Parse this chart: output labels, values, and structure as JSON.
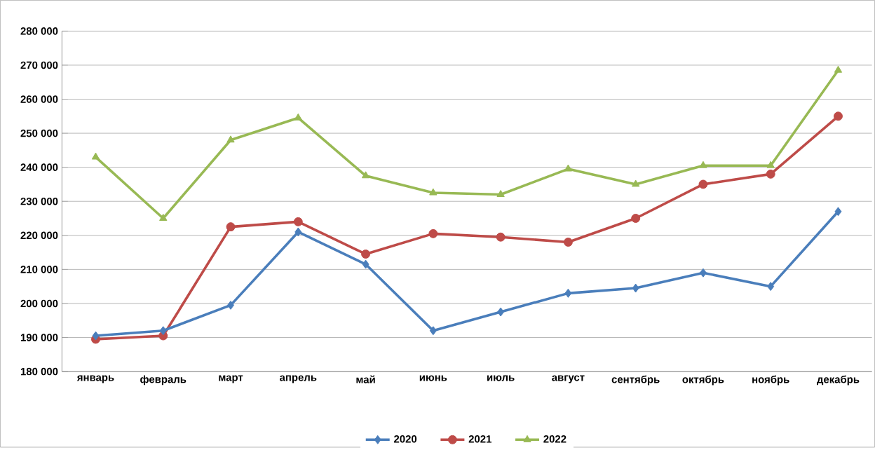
{
  "chart_data": {
    "type": "line",
    "categories": [
      "январь",
      "февраль",
      "март",
      "апрель",
      "май",
      "июнь",
      "июль",
      "август",
      "сентябрь",
      "октябрь",
      "ноябрь",
      "декабрь"
    ],
    "series": [
      {
        "name": "2020",
        "color": "#4a7ebb",
        "marker": "diamond",
        "values": [
          190500,
          192000,
          199500,
          221000,
          211500,
          192000,
          197500,
          203000,
          204500,
          209000,
          205000,
          227000
        ]
      },
      {
        "name": "2021",
        "color": "#be4b48",
        "marker": "circle",
        "values": [
          189500,
          190500,
          222500,
          224000,
          214500,
          220500,
          219500,
          218000,
          225000,
          235000,
          238000,
          255000
        ]
      },
      {
        "name": "2022",
        "color": "#98b954",
        "marker": "triangle",
        "values": [
          243000,
          225000,
          248000,
          254500,
          237500,
          232500,
          232000,
          239500,
          235000,
          240500,
          240500,
          268500
        ]
      }
    ],
    "ylim": [
      180000,
      280000
    ],
    "yticks": [
      {
        "value": 180000,
        "label": "180 000"
      },
      {
        "value": 190000,
        "label": "190 000"
      },
      {
        "value": 200000,
        "label": "200 000"
      },
      {
        "value": 210000,
        "label": "210 000"
      },
      {
        "value": 220000,
        "label": "220 000"
      },
      {
        "value": 230000,
        "label": "230 000"
      },
      {
        "value": 240000,
        "label": "240 000"
      },
      {
        "value": 250000,
        "label": "250 000"
      },
      {
        "value": 260000,
        "label": "260 000"
      },
      {
        "value": 270000,
        "label": "270 000"
      },
      {
        "value": 280000,
        "label": "280 000"
      }
    ],
    "grid": "y",
    "legend": "bottom",
    "line_style": "solid"
  }
}
